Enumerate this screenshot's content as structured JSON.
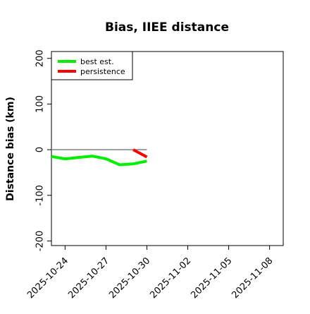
{
  "chart_data": {
    "type": "line",
    "title": "Bias, IIEE distance",
    "xlabel": "",
    "ylabel": "Distance bias (km)",
    "x_ticks": [
      "2025-10-24",
      "2025-10-27",
      "2025-10-30",
      "2025-11-02",
      "2025-11-05",
      "2025-11-08"
    ],
    "y_ticks": [
      -200,
      -100,
      0,
      100,
      200
    ],
    "xlim": [
      "2025-10-23",
      "2025-11-09"
    ],
    "ylim": [
      -210,
      215
    ],
    "grid": false,
    "legend_position": "top-left",
    "reference_line": {
      "y": 0,
      "from": "2025-10-23",
      "to": "2025-10-30",
      "color": "#808080"
    },
    "series": [
      {
        "name": "best est.",
        "color": "#00ee00",
        "points": [
          {
            "x": "2025-10-23",
            "y": -15
          },
          {
            "x": "2025-10-24",
            "y": -20
          },
          {
            "x": "2025-10-25",
            "y": -17
          },
          {
            "x": "2025-10-26",
            "y": -14
          },
          {
            "x": "2025-10-27",
            "y": -20
          },
          {
            "x": "2025-10-28",
            "y": -33
          },
          {
            "x": "2025-10-29",
            "y": -31
          },
          {
            "x": "2025-10-30",
            "y": -25
          }
        ]
      },
      {
        "name": "persistence",
        "color": "#ff0000",
        "points": [
          {
            "x": "2025-10-29",
            "y": 0
          },
          {
            "x": "2025-10-30",
            "y": -16
          }
        ]
      }
    ]
  }
}
